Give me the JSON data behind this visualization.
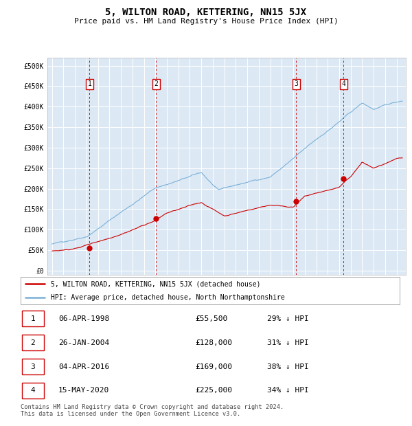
{
  "title": "5, WILTON ROAD, KETTERING, NN15 5JX",
  "subtitle": "Price paid vs. HM Land Registry's House Price Index (HPI)",
  "ytick_values": [
    0,
    50000,
    100000,
    150000,
    200000,
    250000,
    300000,
    350000,
    400000,
    450000,
    500000
  ],
  "xlim_years": [
    1994.6,
    2025.8
  ],
  "ylim": [
    -10000,
    520000
  ],
  "background_color": "#ffffff",
  "plot_bg_color": "#dce9f5",
  "grid_color": "#ffffff",
  "hpi_line_color": "#7ab0d8",
  "price_line_color": "#cc0000",
  "vline_color": "#cc0000",
  "sale_points": [
    {
      "year": 1998.27,
      "price": 55500,
      "label": "1"
    },
    {
      "year": 2004.07,
      "price": 128000,
      "label": "2"
    },
    {
      "year": 2016.26,
      "price": 169000,
      "label": "3"
    },
    {
      "year": 2020.37,
      "price": 225000,
      "label": "4"
    }
  ],
  "legend_items": [
    {
      "label": "5, WILTON ROAD, KETTERING, NN15 5JX (detached house)",
      "color": "#cc0000"
    },
    {
      "label": "HPI: Average price, detached house, North Northamptonshire",
      "color": "#7ab0d8"
    }
  ],
  "table_rows": [
    {
      "num": "1",
      "date": "06-APR-1998",
      "price": "£55,500",
      "note": "29% ↓ HPI"
    },
    {
      "num": "2",
      "date": "26-JAN-2004",
      "price": "£128,000",
      "note": "31% ↓ HPI"
    },
    {
      "num": "3",
      "date": "04-APR-2016",
      "price": "£169,000",
      "note": "38% ↓ HPI"
    },
    {
      "num": "4",
      "date": "15-MAY-2020",
      "price": "£225,000",
      "note": "34% ↓ HPI"
    }
  ],
  "footer": "Contains HM Land Registry data © Crown copyright and database right 2024.\nThis data is licensed under the Open Government Licence v3.0."
}
